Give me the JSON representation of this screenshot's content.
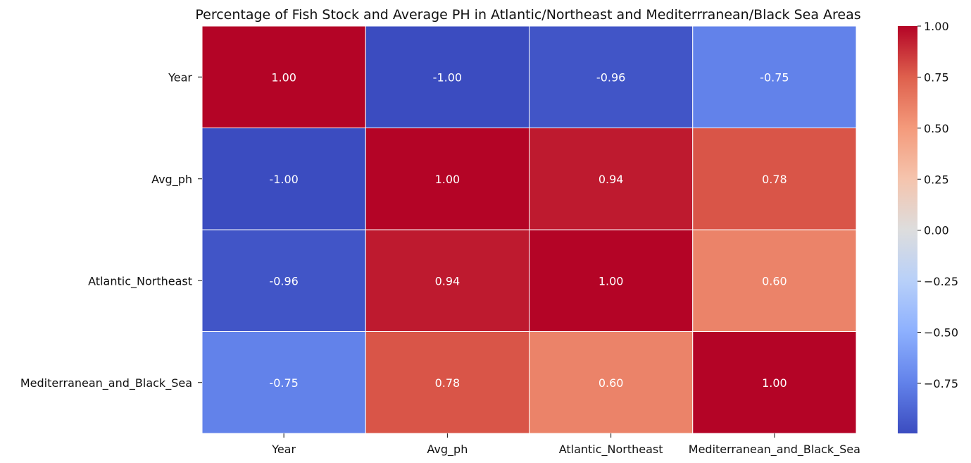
{
  "chart_data": {
    "type": "heatmap",
    "title": "Percentage of Fish Stock and Average PH in Atlantic/Northeast and Mediterrranean/Black Sea Areas",
    "x_labels": [
      "Year",
      "Avg_ph",
      "Atlantic_Northeast",
      "Mediterranean_and_Black_Sea"
    ],
    "y_labels": [
      "Year",
      "Avg_ph",
      "Atlantic_Northeast",
      "Mediterranean_and_Black_Sea"
    ],
    "values": [
      [
        1.0,
        -1.0,
        -0.96,
        -0.75
      ],
      [
        -1.0,
        1.0,
        0.94,
        0.78
      ],
      [
        -0.96,
        0.94,
        1.0,
        0.6
      ],
      [
        -0.75,
        0.78,
        0.6,
        1.0
      ]
    ],
    "cell_labels": [
      [
        "1.00",
        "-1.00",
        "-0.96",
        "-0.75"
      ],
      [
        "-1.00",
        "1.00",
        "0.94",
        "0.78"
      ],
      [
        "-0.96",
        "0.94",
        "1.00",
        "0.60"
      ],
      [
        "-0.75",
        "0.78",
        "0.60",
        "1.00"
      ]
    ],
    "colormap": "coolwarm",
    "vmin": -1.0,
    "vmax": 1.0,
    "colorbar_ticks": [
      1.0,
      0.75,
      0.5,
      0.25,
      0.0,
      -0.25,
      -0.5,
      -0.75
    ],
    "colorbar_tick_labels": [
      "1.00",
      "0.75",
      "0.50",
      "0.25",
      "0.00",
      "−0.25",
      "−0.50",
      "−0.75"
    ],
    "cell_border_color": "#ffffff"
  }
}
